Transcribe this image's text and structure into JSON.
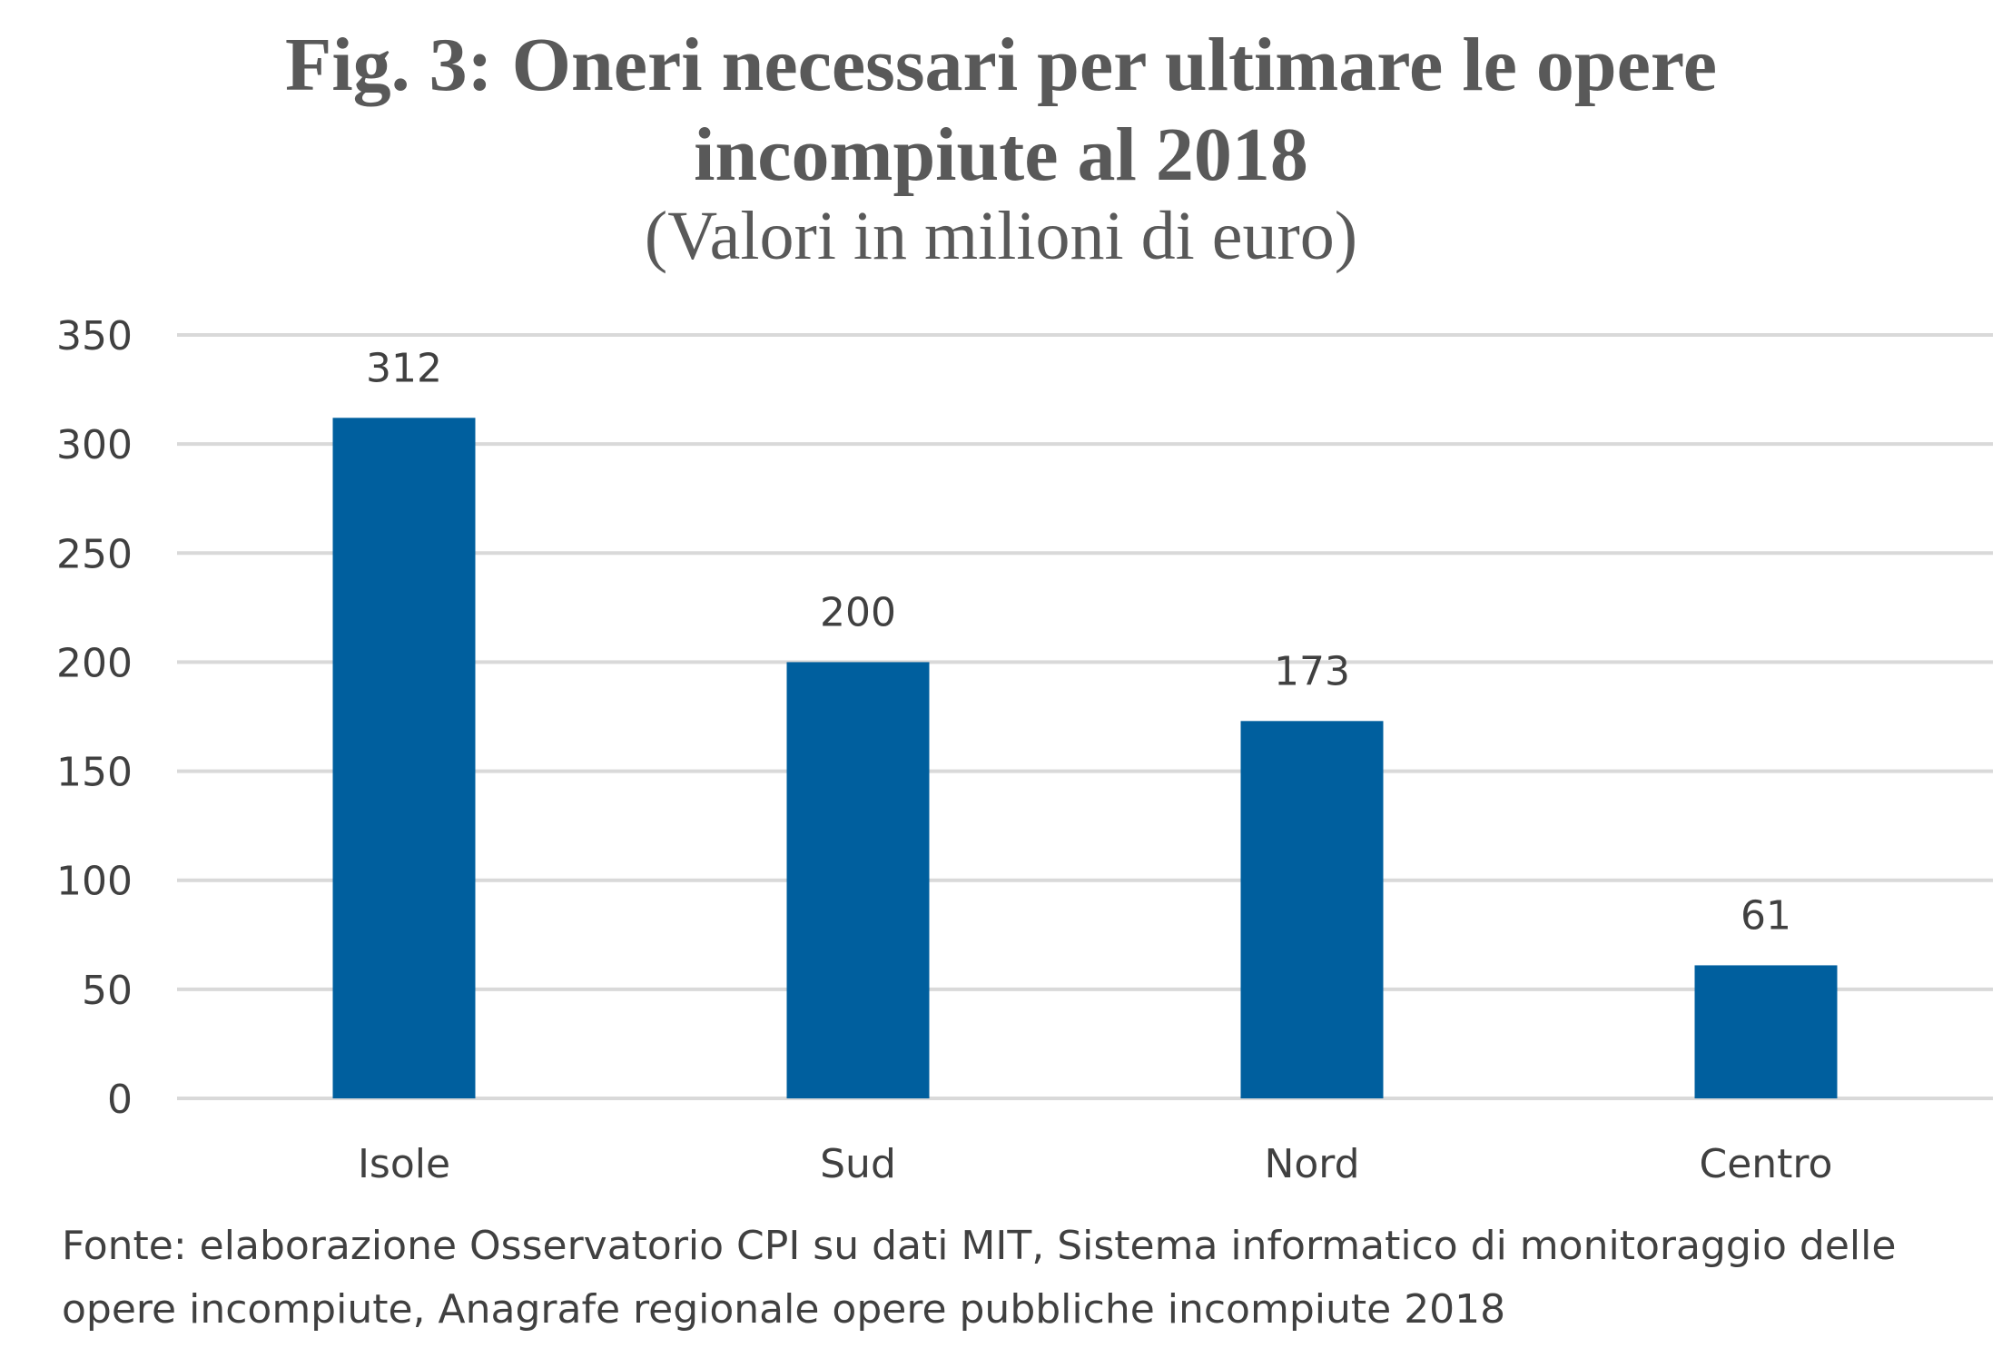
{
  "chart_data": {
    "type": "bar",
    "title": "Fig. 3: Oneri necessari per ultimare le opere incompiute al 2018",
    "subtitle": "(Valori in milioni di euro)",
    "categories": [
      "Isole",
      "Sud",
      "Nord",
      "Centro"
    ],
    "values": [
      312,
      200,
      173,
      61
    ],
    "data_labels": [
      "312",
      "200",
      "173",
      "61"
    ],
    "xlabel": "",
    "ylabel": "",
    "ylim": [
      0,
      350
    ],
    "yticks": [
      0,
      50,
      100,
      150,
      200,
      250,
      300,
      350
    ],
    "grid": true,
    "legend": "none",
    "bar_color": "#005f9e",
    "grid_color": "#d9d9d9"
  },
  "source_note": "Fonte: elaborazione Osservatorio CPI su dati MIT, Sistema informatico di monitoraggio delle opere incompiute, Anagrafe regionale opere pubbliche incompiute 2018"
}
